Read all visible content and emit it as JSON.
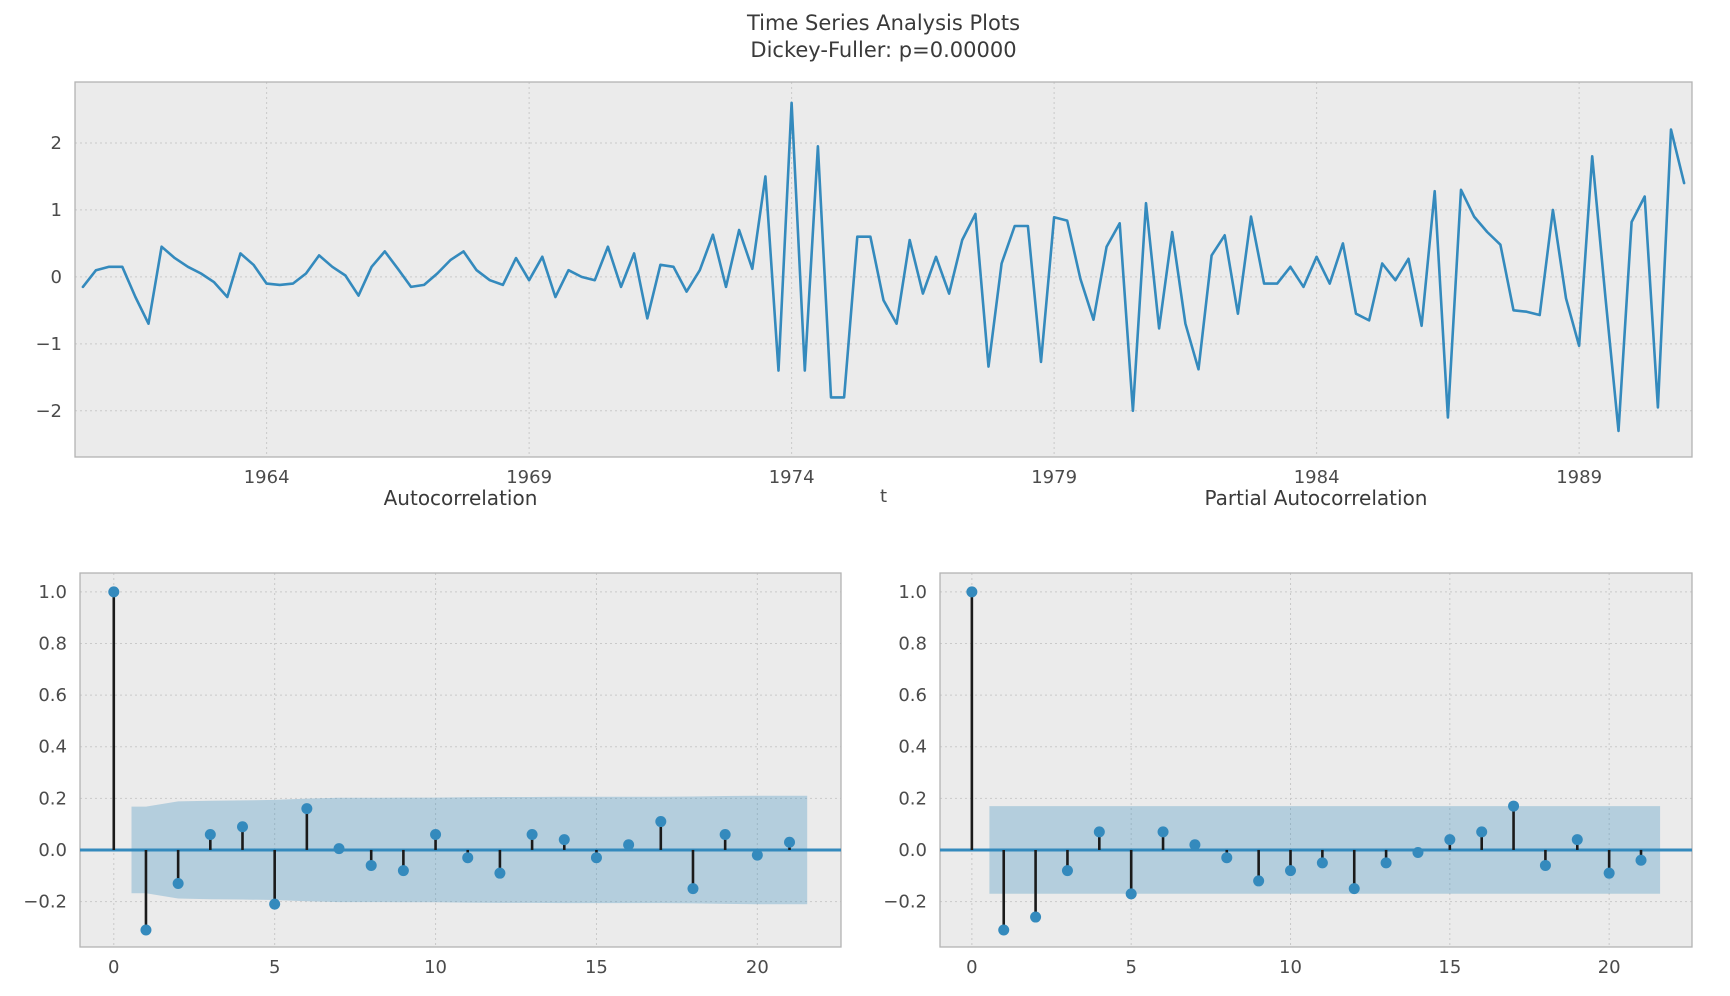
{
  "header": {
    "title": "Time Series Analysis Plots",
    "subtitle": "Dickey-Fuller: p=0.00000"
  },
  "colors": {
    "axes_bg": "#ebebeb",
    "grid": "#c9c9c9",
    "spine": "#b3b3b3",
    "line": "#348ABD",
    "stem": "#1a1a1a",
    "marker": "#348ABD",
    "zero_line": "#348ABD",
    "band": "#348ABD",
    "band_opacity": 0.3,
    "text": "#3a3a3a",
    "tick_text": "#4b4b4b"
  },
  "chart_data": [
    {
      "id": "timeseries",
      "type": "line",
      "title": "Time Series Analysis Plots",
      "subtitle": "Dickey-Fuller: p=0.00000",
      "xlabel": "t",
      "x_start": 1960.5,
      "x_step": 0.25,
      "xlim": [
        1960.35,
        1991.15
      ],
      "ylim": [
        -2.69,
        2.91
      ],
      "grid": true,
      "x_ticks": [
        {
          "v": 1964,
          "label": "1964"
        },
        {
          "v": 1969,
          "label": "1969"
        },
        {
          "v": 1974,
          "label": "1974"
        },
        {
          "v": 1979,
          "label": "1979"
        },
        {
          "v": 1984,
          "label": "1984"
        },
        {
          "v": 1989,
          "label": "1989"
        }
      ],
      "y_ticks": [
        {
          "v": -2,
          "label": "−2"
        },
        {
          "v": -1,
          "label": "−1"
        },
        {
          "v": 0,
          "label": "0"
        },
        {
          "v": 1,
          "label": "1"
        },
        {
          "v": 2,
          "label": "2"
        }
      ],
      "values": [
        -0.15,
        0.1,
        0.15,
        0.15,
        -0.3,
        -0.7,
        0.45,
        0.28,
        0.15,
        0.05,
        -0.08,
        -0.3,
        0.35,
        0.18,
        -0.1,
        -0.12,
        -0.1,
        0.05,
        0.32,
        0.15,
        0.02,
        -0.28,
        0.15,
        0.38,
        0.12,
        -0.15,
        -0.12,
        0.05,
        0.25,
        0.38,
        0.1,
        -0.05,
        -0.12,
        0.28,
        -0.05,
        0.3,
        -0.3,
        0.1,
        0.0,
        -0.05,
        0.45,
        -0.15,
        0.35,
        -0.62,
        0.18,
        0.15,
        -0.22,
        0.1,
        0.63,
        -0.15,
        0.7,
        0.12,
        1.5,
        -1.4,
        2.6,
        -1.4,
        1.95,
        -1.8,
        -1.8,
        0.6,
        0.6,
        -0.35,
        -0.7,
        0.55,
        -0.25,
        0.3,
        -0.25,
        0.55,
        0.94,
        -1.34,
        0.2,
        0.76,
        0.76,
        -1.27,
        0.89,
        0.84,
        -0.03,
        -0.64,
        0.45,
        0.8,
        -2.0,
        1.1,
        -0.77,
        0.67,
        -0.7,
        -1.38,
        0.32,
        0.62,
        -0.55,
        0.9,
        -0.1,
        -0.1,
        0.15,
        -0.15,
        0.3,
        -0.1,
        0.5,
        -0.55,
        -0.65,
        0.2,
        -0.05,
        0.27,
        -0.73,
        1.28,
        -2.1,
        1.3,
        0.9,
        0.67,
        0.48,
        -0.5,
        -0.52,
        -0.57,
        1.0,
        -0.32,
        -1.03,
        1.8,
        -0.3,
        -2.3,
        0.82,
        1.2,
        -1.95,
        2.2,
        1.4
      ]
    },
    {
      "id": "acf",
      "type": "stem",
      "title": "Autocorrelation",
      "xlim": [
        -1.05,
        22.6
      ],
      "ylim": [
        -0.376,
        1.073
      ],
      "grid": true,
      "x_ticks": [
        {
          "v": 0,
          "label": "0"
        },
        {
          "v": 5,
          "label": "5"
        },
        {
          "v": 10,
          "label": "10"
        },
        {
          "v": 15,
          "label": "15"
        },
        {
          "v": 20,
          "label": "20"
        }
      ],
      "y_ticks": [
        {
          "v": 1.0,
          "label": "1.0"
        },
        {
          "v": 0.8,
          "label": "0.8"
        },
        {
          "v": 0.6,
          "label": "0.6"
        },
        {
          "v": 0.4,
          "label": "0.4"
        },
        {
          "v": 0.2,
          "label": "0.2"
        },
        {
          "v": 0.0,
          "label": "0.0"
        },
        {
          "v": -0.2,
          "label": "−0.2"
        }
      ],
      "lags": [
        0,
        1,
        2,
        3,
        4,
        5,
        6,
        7,
        8,
        9,
        10,
        11,
        12,
        13,
        14,
        15,
        16,
        17,
        18,
        19,
        20,
        21
      ],
      "values": [
        1.0,
        -0.31,
        -0.13,
        0.06,
        0.09,
        -0.21,
        0.16,
        0.005,
        -0.06,
        -0.08,
        0.06,
        -0.03,
        -0.09,
        0.06,
        0.04,
        -0.03,
        0.02,
        0.11,
        -0.15,
        0.06,
        -0.02,
        0.03
      ],
      "conf_band": {
        "start": 0.55,
        "end": 21.55,
        "halfwidths": [
          0.165,
          0.168,
          0.188,
          0.191,
          0.192,
          0.194,
          0.199,
          0.202,
          0.202,
          0.203,
          0.203,
          0.204,
          0.205,
          0.205,
          0.206,
          0.206,
          0.206,
          0.206,
          0.207,
          0.209,
          0.21,
          0.21
        ]
      }
    },
    {
      "id": "pacf",
      "type": "stem",
      "title": "Partial Autocorrelation",
      "xlim": [
        -1.0,
        22.6
      ],
      "ylim": [
        -0.376,
        1.073
      ],
      "grid": true,
      "x_ticks": [
        {
          "v": 0,
          "label": "0"
        },
        {
          "v": 5,
          "label": "5"
        },
        {
          "v": 10,
          "label": "10"
        },
        {
          "v": 15,
          "label": "15"
        },
        {
          "v": 20,
          "label": "20"
        }
      ],
      "y_ticks": [
        {
          "v": 1.0,
          "label": "1.0"
        },
        {
          "v": 0.8,
          "label": "0.8"
        },
        {
          "v": 0.6,
          "label": "0.6"
        },
        {
          "v": 0.4,
          "label": "0.4"
        },
        {
          "v": 0.2,
          "label": "0.2"
        },
        {
          "v": 0.0,
          "label": "0.0"
        },
        {
          "v": -0.2,
          "label": "−0.2"
        }
      ],
      "lags": [
        0,
        1,
        2,
        3,
        4,
        5,
        6,
        7,
        8,
        9,
        10,
        11,
        12,
        13,
        14,
        15,
        16,
        17,
        18,
        19,
        20,
        21
      ],
      "values": [
        1.0,
        -0.31,
        -0.26,
        -0.08,
        0.07,
        -0.17,
        0.07,
        0.02,
        -0.03,
        -0.12,
        -0.08,
        -0.05,
        -0.15,
        -0.05,
        -0.01,
        0.04,
        0.07,
        0.17,
        -0.06,
        0.04,
        -0.09,
        -0.04
      ],
      "conf_band": {
        "start": 0.55,
        "end": 21.6,
        "halfwidths": [
          0.17,
          0.17,
          0.17,
          0.17,
          0.17,
          0.17,
          0.17,
          0.17,
          0.17,
          0.17,
          0.17,
          0.17,
          0.17,
          0.17,
          0.17,
          0.17,
          0.17,
          0.17,
          0.17,
          0.17,
          0.17,
          0.17
        ]
      }
    }
  ]
}
